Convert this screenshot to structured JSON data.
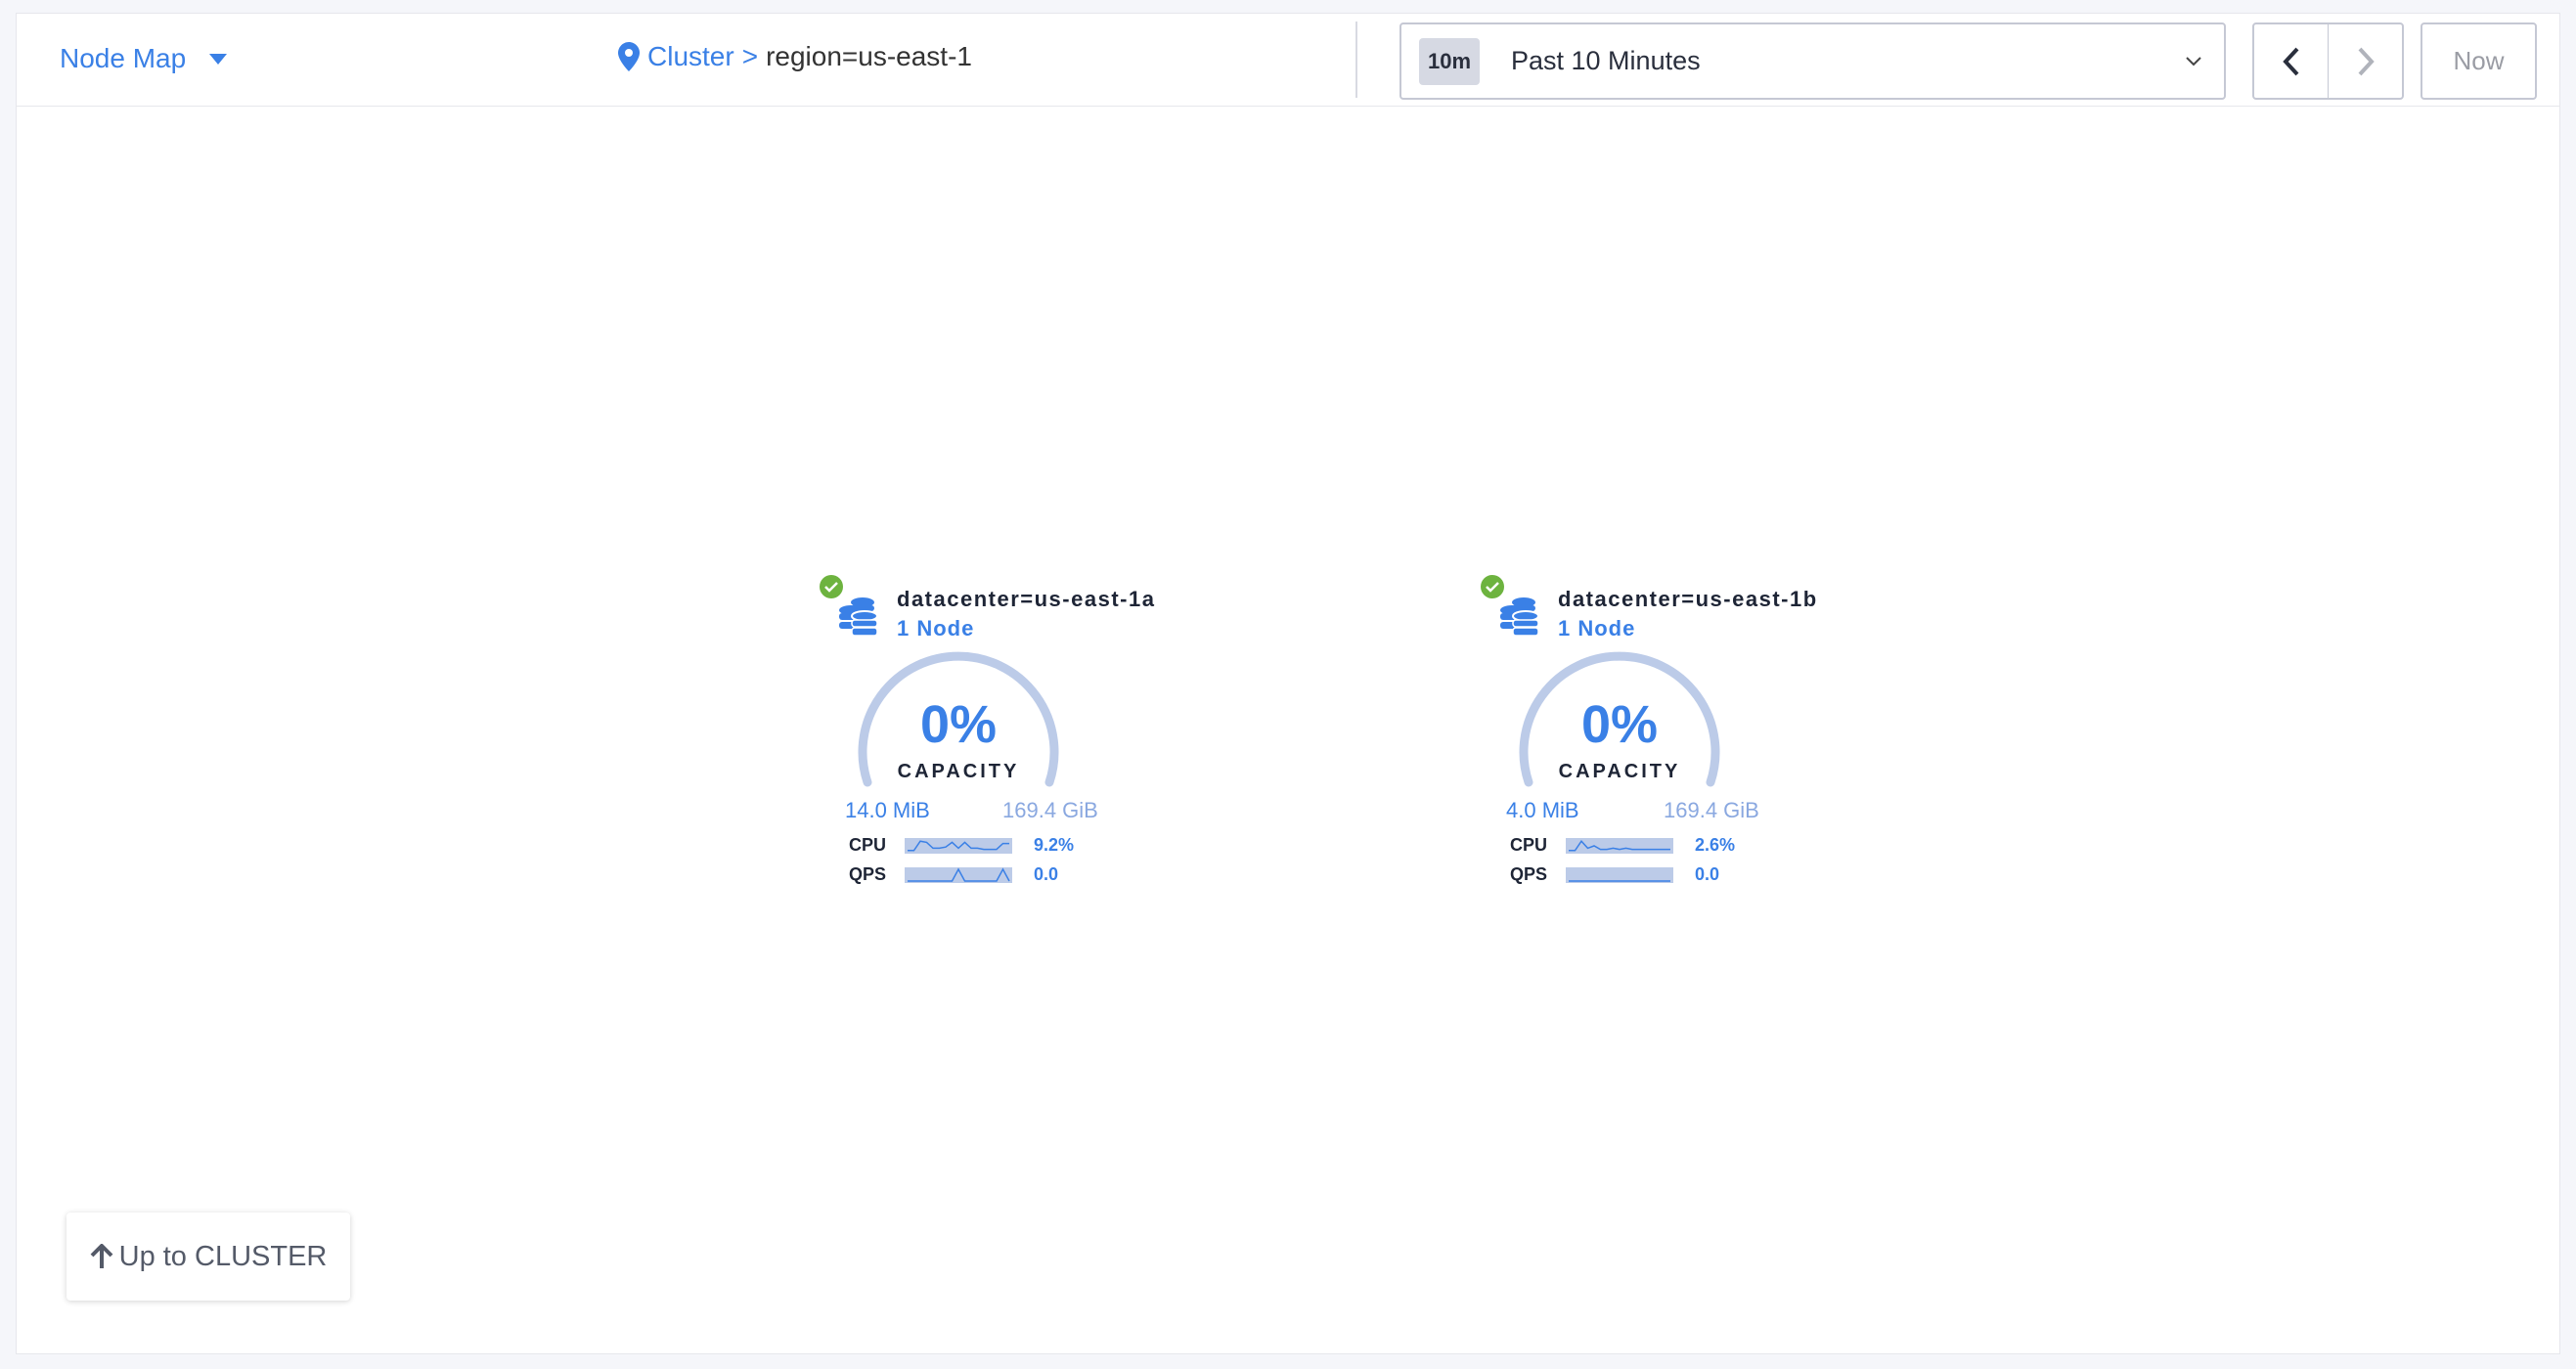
{
  "header": {
    "view_selector": "Node Map",
    "breadcrumb": {
      "root": "Cluster",
      "separator": ">",
      "current": "region=us-east-1"
    },
    "time_range": {
      "badge": "10m",
      "label": "Past 10 Minutes"
    },
    "now_label": "Now"
  },
  "colors": {
    "accent": "#3a80e6",
    "gauge_track": "#bccbe8",
    "healthy": "#6db33f",
    "spark_fill": "#bccbe8"
  },
  "localities": [
    {
      "name": "datacenter=us-east-1a",
      "nodes": "1 Node",
      "status": "healthy",
      "capacity_pct": "0%",
      "capacity_label": "CAPACITY",
      "used": "14.0 MiB",
      "total": "169.4 GiB",
      "cpu_label": "CPU",
      "cpu_value": "9.2%",
      "qps_label": "QPS",
      "qps_value": "0.0",
      "cpu_trend": [
        0.1,
        0.1,
        0.9,
        0.8,
        0.3,
        0.3,
        0.4,
        0.8,
        0.3,
        0.8,
        0.3,
        0.3,
        0.2,
        0.2,
        0.2,
        0.7,
        0.7
      ],
      "qps_trend": [
        0,
        0,
        0,
        0,
        0,
        0,
        0,
        0,
        1,
        0,
        0,
        0,
        0,
        0,
        0,
        1,
        0
      ]
    },
    {
      "name": "datacenter=us-east-1b",
      "nodes": "1 Node",
      "status": "healthy",
      "capacity_pct": "0%",
      "capacity_label": "CAPACITY",
      "used": "4.0 MiB",
      "total": "169.4 GiB",
      "cpu_label": "CPU",
      "cpu_value": "2.6%",
      "qps_label": "QPS",
      "qps_value": "0.0",
      "cpu_trend": [
        0.1,
        0.1,
        0.9,
        0.3,
        0.5,
        0.2,
        0.2,
        0.3,
        0.2,
        0.3,
        0.2,
        0.2,
        0.2,
        0.2,
        0.2,
        0.2,
        0.2
      ],
      "qps_trend": [
        0,
        0,
        0,
        0,
        0,
        0,
        0,
        0,
        0,
        0,
        0,
        0,
        0,
        0,
        0,
        0,
        0
      ]
    }
  ],
  "up_button": {
    "label": "Up to CLUSTER"
  }
}
